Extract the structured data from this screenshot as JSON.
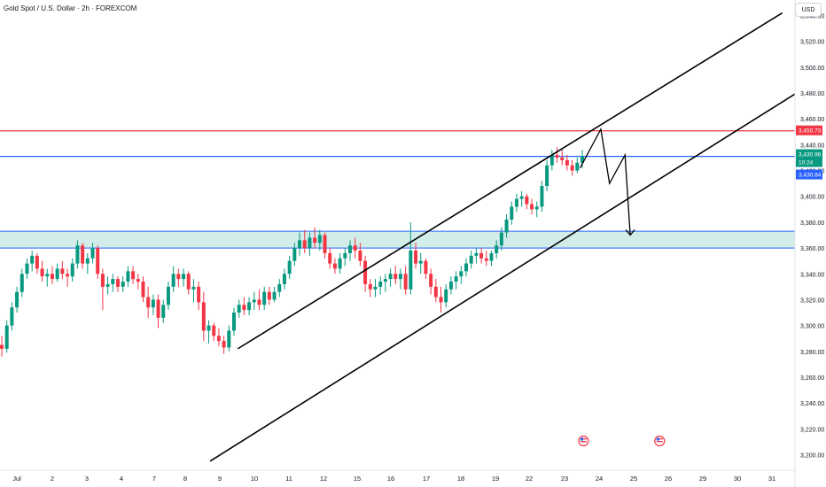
{
  "header": {
    "title": "Gold Spot / U.S. Dollar · 2h · FOREXCOM",
    "currency": "USD"
  },
  "colors": {
    "up": "#089981",
    "down": "#f23645",
    "red_line": "#f23645",
    "blue_line": "#2962ff",
    "zone": "#b2dfdb",
    "drawing": "#000000"
  },
  "chart_data": {
    "type": "candlestick",
    "y_axis": {
      "ticks": [
        3200,
        3220,
        3240,
        3260,
        3280,
        3300,
        3320,
        3340,
        3360,
        3380,
        3400,
        3420,
        3440,
        3460,
        3480,
        3500,
        3520,
        3540
      ],
      "tick_labels": [
        "3,200.00",
        "3,220.00",
        "3,240.00",
        "3,260.00",
        "3,280.00",
        "3,300.00",
        "3,320.00",
        "3,340.00",
        "3,360.00",
        "3,380.00",
        "3,400.00",
        "3,420.00",
        "3,440.00",
        "3,460.00",
        "3,480.00",
        "3,500.00",
        "3,520.00",
        "3,540.00"
      ],
      "ylim": [
        3188,
        3552
      ]
    },
    "x_axis": {
      "labels": [
        "Jul",
        "2",
        "3",
        "4",
        "7",
        "8",
        "9",
        "10",
        "11",
        "12",
        "15",
        "16",
        "17",
        "18",
        "19",
        "22",
        "23",
        "24",
        "25",
        "26",
        "29",
        "30",
        "31"
      ],
      "xlim": [
        0,
        23
      ]
    },
    "price_labels": [
      {
        "value": 3450.73,
        "text": "3,450.73",
        "style": "red"
      },
      {
        "value": 3430.96,
        "text": "3,430.96",
        "sub": "10:24",
        "style": "green"
      },
      {
        "value": 3430.84,
        "text": "3,430.84",
        "style": "blue"
      }
    ],
    "horizontal_lines": [
      {
        "value": 3450.73,
        "color": "red"
      },
      {
        "value": 3430.9,
        "color": "blue"
      }
    ],
    "zone": {
      "from": 3360,
      "to": 3373
    },
    "channel": {
      "upper": [
        [
          6.52,
          3282
        ],
        [
          22.3,
          3542
        ]
      ],
      "lower": [
        [
          5.72,
          3195
        ],
        [
          22.95,
          3484
        ]
      ]
    },
    "projection": [
      [
        16.45,
        3422
      ],
      [
        17.05,
        3452
      ],
      [
        17.3,
        3410
      ],
      [
        17.75,
        3432
      ],
      [
        17.9,
        3370
      ]
    ],
    "events": [
      {
        "x": 16.55,
        "icon": "flag-us-icon"
      },
      {
        "x": 18.75,
        "icon": "flag-us-icon"
      }
    ],
    "candles": [
      [
        3285,
        3292,
        3276,
        3282
      ],
      [
        3282,
        3304,
        3279,
        3300
      ],
      [
        3300,
        3318,
        3296,
        3314
      ],
      [
        3314,
        3330,
        3310,
        3326
      ],
      [
        3326,
        3344,
        3322,
        3340
      ],
      [
        3340,
        3352,
        3336,
        3348
      ],
      [
        3348,
        3358,
        3342,
        3354
      ],
      [
        3354,
        3356,
        3340,
        3344
      ],
      [
        3344,
        3350,
        3334,
        3338
      ],
      [
        3338,
        3344,
        3330,
        3340
      ],
      [
        3340,
        3346,
        3332,
        3336
      ],
      [
        3336,
        3348,
        3334,
        3344
      ],
      [
        3344,
        3350,
        3336,
        3340
      ],
      [
        3340,
        3344,
        3330,
        3338
      ],
      [
        3338,
        3352,
        3334,
        3348
      ],
      [
        3348,
        3366,
        3344,
        3362
      ],
      [
        3362,
        3364,
        3344,
        3348
      ],
      [
        3348,
        3356,
        3340,
        3352
      ],
      [
        3352,
        3364,
        3348,
        3360
      ],
      [
        3360,
        3362,
        3336,
        3340
      ],
      [
        3340,
        3344,
        3312,
        3330
      ],
      [
        3330,
        3338,
        3324,
        3332
      ],
      [
        3332,
        3340,
        3326,
        3336
      ],
      [
        3336,
        3338,
        3326,
        3330
      ],
      [
        3330,
        3338,
        3326,
        3334
      ],
      [
        3334,
        3346,
        3330,
        3342
      ],
      [
        3342,
        3346,
        3332,
        3336
      ],
      [
        3336,
        3340,
        3328,
        3334
      ],
      [
        3334,
        3338,
        3318,
        3322
      ],
      [
        3322,
        3330,
        3306,
        3314
      ],
      [
        3314,
        3324,
        3308,
        3320
      ],
      [
        3320,
        3324,
        3298,
        3306
      ],
      [
        3306,
        3320,
        3302,
        3316
      ],
      [
        3316,
        3334,
        3312,
        3330
      ],
      [
        3330,
        3346,
        3326,
        3340
      ],
      [
        3340,
        3344,
        3330,
        3336
      ],
      [
        3336,
        3344,
        3330,
        3340
      ],
      [
        3340,
        3342,
        3324,
        3328
      ],
      [
        3328,
        3336,
        3318,
        3330
      ],
      [
        3330,
        3334,
        3312,
        3318
      ],
      [
        3318,
        3326,
        3288,
        3296
      ],
      [
        3296,
        3304,
        3286,
        3300
      ],
      [
        3300,
        3302,
        3288,
        3292
      ],
      [
        3292,
        3298,
        3284,
        3288
      ],
      [
        3288,
        3292,
        3278,
        3283
      ],
      [
        3283,
        3300,
        3280,
        3296
      ],
      [
        3296,
        3314,
        3292,
        3310
      ],
      [
        3310,
        3320,
        3306,
        3316
      ],
      [
        3316,
        3322,
        3308,
        3312
      ],
      [
        3312,
        3322,
        3308,
        3318
      ],
      [
        3318,
        3326,
        3312,
        3320
      ],
      [
        3320,
        3328,
        3312,
        3316
      ],
      [
        3316,
        3330,
        3312,
        3326
      ],
      [
        3326,
        3330,
        3316,
        3320
      ],
      [
        3320,
        3330,
        3318,
        3326
      ],
      [
        3326,
        3336,
        3322,
        3332
      ],
      [
        3332,
        3344,
        3328,
        3340
      ],
      [
        3340,
        3354,
        3336,
        3350
      ],
      [
        3350,
        3364,
        3346,
        3360
      ],
      [
        3360,
        3372,
        3354,
        3366
      ],
      [
        3366,
        3374,
        3356,
        3360
      ],
      [
        3360,
        3372,
        3354,
        3368
      ],
      [
        3368,
        3376,
        3360,
        3364
      ],
      [
        3364,
        3374,
        3358,
        3370
      ],
      [
        3370,
        3372,
        3352,
        3356
      ],
      [
        3356,
        3360,
        3344,
        3348
      ],
      [
        3348,
        3352,
        3340,
        3344
      ],
      [
        3344,
        3356,
        3340,
        3352
      ],
      [
        3352,
        3360,
        3346,
        3356
      ],
      [
        3356,
        3366,
        3350,
        3362
      ],
      [
        3362,
        3368,
        3352,
        3358
      ],
      [
        3358,
        3364,
        3346,
        3350
      ],
      [
        3350,
        3354,
        3326,
        3332
      ],
      [
        3332,
        3336,
        3322,
        3328
      ],
      [
        3328,
        3336,
        3322,
        3330
      ],
      [
        3330,
        3338,
        3324,
        3334
      ],
      [
        3334,
        3340,
        3326,
        3336
      ],
      [
        3336,
        3344,
        3330,
        3340
      ],
      [
        3340,
        3346,
        3332,
        3336
      ],
      [
        3336,
        3344,
        3328,
        3340
      ],
      [
        3340,
        3346,
        3324,
        3328
      ],
      [
        3328,
        3380,
        3324,
        3358
      ],
      [
        3358,
        3364,
        3344,
        3348
      ],
      [
        3348,
        3356,
        3340,
        3350
      ],
      [
        3350,
        3352,
        3336,
        3340
      ],
      [
        3340,
        3344,
        3324,
        3330
      ],
      [
        3330,
        3336,
        3318,
        3322
      ],
      [
        3322,
        3330,
        3310,
        3318
      ],
      [
        3318,
        3332,
        3314,
        3328
      ],
      [
        3328,
        3338,
        3324,
        3334
      ],
      [
        3334,
        3342,
        3328,
        3338
      ],
      [
        3338,
        3346,
        3332,
        3342
      ],
      [
        3342,
        3352,
        3338,
        3348
      ],
      [
        3348,
        3358,
        3344,
        3354
      ],
      [
        3354,
        3360,
        3348,
        3356
      ],
      [
        3356,
        3360,
        3348,
        3352
      ],
      [
        3352,
        3358,
        3346,
        3350
      ],
      [
        3350,
        3358,
        3346,
        3356
      ],
      [
        3356,
        3366,
        3352,
        3362
      ],
      [
        3362,
        3376,
        3358,
        3372
      ],
      [
        3372,
        3386,
        3368,
        3382
      ],
      [
        3382,
        3396,
        3378,
        3392
      ],
      [
        3392,
        3402,
        3388,
        3398
      ],
      [
        3398,
        3404,
        3392,
        3400
      ],
      [
        3400,
        3402,
        3390,
        3394
      ],
      [
        3394,
        3398,
        3386,
        3390
      ],
      [
        3390,
        3396,
        3384,
        3392
      ],
      [
        3392,
        3412,
        3388,
        3408
      ],
      [
        3408,
        3428,
        3404,
        3424
      ],
      [
        3424,
        3436,
        3420,
        3432
      ],
      [
        3432,
        3438,
        3426,
        3430
      ],
      [
        3430,
        3436,
        3424,
        3428
      ],
      [
        3428,
        3432,
        3420,
        3424
      ],
      [
        3424,
        3428,
        3416,
        3420
      ],
      [
        3420,
        3430,
        3418,
        3426
      ],
      [
        3426,
        3436,
        3422,
        3431
      ]
    ]
  }
}
